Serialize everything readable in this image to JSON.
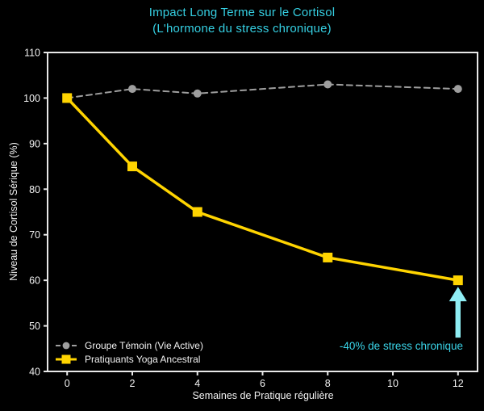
{
  "colors": {
    "background": "#000000",
    "title": "#35cfe2",
    "axis": "#e8e8e8",
    "tick_labels": "#f2f2f2",
    "legend_text": "#f2f2f2",
    "annotation_text": "#3ad4e8",
    "annotation_arrow": "#8feef4"
  },
  "chart_data": {
    "type": "line",
    "title": "Impact Long Terme sur le Cortisol",
    "subtitle": "(L'hormone du stress chronique)",
    "xlabel": "Semaines de Pratique régulière",
    "ylabel": "Niveau de Cortisol Sérique (%)",
    "x": [
      0,
      2,
      4,
      8,
      12
    ],
    "series": [
      {
        "name": "Groupe Témoin (Vie Active)",
        "values": [
          100,
          102,
          101,
          103,
          102
        ],
        "color": "#9e9e9e",
        "style": "dashed",
        "marker": "circle"
      },
      {
        "name": "Pratiquants Yoga Ancestral",
        "values": [
          100,
          85,
          75,
          65,
          60
        ],
        "color": "#ffd400",
        "style": "solid",
        "marker": "square"
      }
    ],
    "xlim": [
      -0.6,
      12.6
    ],
    "ylim": [
      40,
      110
    ],
    "x_ticks": [
      0,
      2,
      4,
      6,
      8,
      10,
      12
    ],
    "y_ticks": [
      40,
      50,
      60,
      70,
      80,
      90,
      100,
      110
    ],
    "grid": false,
    "legend_position": "lower-left",
    "annotation": {
      "text": "-40% de stress chronique",
      "target_x": 12,
      "target_y": 60
    }
  }
}
